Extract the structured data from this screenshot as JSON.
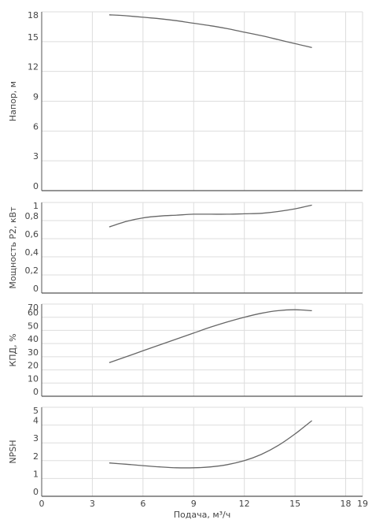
{
  "chart_data": [
    {
      "type": "line",
      "ylabel": "Напор, м",
      "ylim": [
        0,
        18
      ],
      "yticks": [
        0,
        3,
        6,
        9,
        12,
        15,
        18
      ],
      "grid": true,
      "series": [
        {
          "x": [
            4,
            5,
            6,
            7,
            8,
            9,
            10,
            11,
            12,
            13,
            14,
            15,
            16
          ],
          "values": [
            17.7,
            17.6,
            17.45,
            17.3,
            17.1,
            16.85,
            16.6,
            16.3,
            15.95,
            15.6,
            15.2,
            14.8,
            14.4
          ]
        }
      ]
    },
    {
      "type": "line",
      "ylabel": "Мощность P2, кВт",
      "ylim": [
        0,
        1
      ],
      "yticks": [
        0,
        0.2,
        0.4,
        0.6,
        0.8,
        1
      ],
      "grid": true,
      "series": [
        {
          "x": [
            4,
            5,
            6,
            7,
            8,
            9,
            10,
            11,
            12,
            13,
            14,
            15,
            16
          ],
          "values": [
            0.73,
            0.79,
            0.83,
            0.85,
            0.86,
            0.87,
            0.87,
            0.87,
            0.875,
            0.88,
            0.9,
            0.93,
            0.97
          ]
        }
      ]
    },
    {
      "type": "line",
      "ylabel": "КПД, %",
      "ylim": [
        0,
        70
      ],
      "yticks": [
        0,
        10,
        20,
        30,
        40,
        50,
        60,
        70
      ],
      "grid": true,
      "series": [
        {
          "x": [
            4,
            5,
            6,
            7,
            8,
            9,
            10,
            11,
            12,
            13,
            14,
            15,
            16
          ],
          "values": [
            25.5,
            30,
            34.5,
            39,
            43.5,
            48,
            52.5,
            56.5,
            60,
            63,
            65,
            65.7,
            65
          ]
        }
      ]
    },
    {
      "type": "line",
      "ylabel": "NPSH",
      "ylim": [
        0,
        5
      ],
      "yticks": [
        0,
        1,
        2,
        3,
        4,
        5
      ],
      "xlabel": "Подача, м³/ч",
      "xlim": [
        0,
        19
      ],
      "xticks": [
        0,
        3,
        6,
        9,
        12,
        15,
        18,
        19
      ],
      "grid": true,
      "series": [
        {
          "x": [
            4,
            5,
            6,
            7,
            8,
            9,
            10,
            11,
            12,
            13,
            14,
            15,
            16
          ],
          "values": [
            1.87,
            1.8,
            1.72,
            1.65,
            1.6,
            1.6,
            1.65,
            1.78,
            2.0,
            2.35,
            2.85,
            3.5,
            4.25
          ]
        }
      ]
    }
  ],
  "colors": {
    "grid": "#dddddd",
    "axis": "#555555",
    "line": "#666666",
    "text": "#444444"
  }
}
